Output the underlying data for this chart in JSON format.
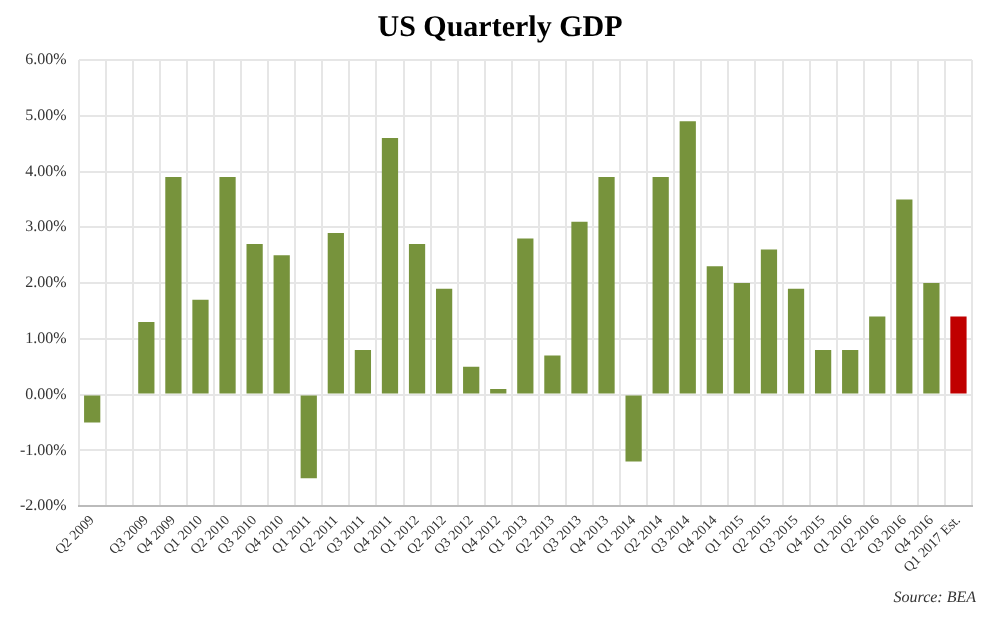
{
  "chart_data": {
    "type": "bar",
    "title": "US Quarterly GDP",
    "categories": [
      "Q2 2009",
      null,
      "Q3 2009",
      "Q4 2009",
      "Q1 2010",
      "Q2 2010",
      "Q3 2010",
      "Q4 2010",
      "Q1 2011",
      "Q2 2011",
      "Q3 2011",
      "Q4 2011",
      "Q1 2012",
      "Q2 2012",
      "Q3 2012",
      "Q4 2012",
      "Q1 2013",
      "Q2 2013",
      "Q3 2013",
      "Q4 2013",
      "Q1 2014",
      "Q2 2014",
      "Q3 2014",
      "Q4 2014",
      "Q1 2015",
      "Q2 2015",
      "Q3 2015",
      "Q4 2015",
      "Q1 2016",
      "Q2 2016",
      "Q3 2016",
      "Q4 2016",
      "Q1 2017 Est."
    ],
    "values": [
      -0.5,
      null,
      1.3,
      3.9,
      1.7,
      3.9,
      2.7,
      2.5,
      -1.5,
      2.9,
      0.8,
      4.6,
      2.7,
      1.9,
      0.5,
      0.1,
      2.8,
      0.7,
      3.1,
      3.9,
      -1.2,
      3.9,
      4.9,
      2.3,
      2.0,
      2.6,
      1.9,
      0.8,
      0.8,
      1.4,
      3.5,
      2.0,
      1.4
    ],
    "colors": [
      "#77933c",
      "#77933c",
      "#77933c",
      "#77933c",
      "#77933c",
      "#77933c",
      "#77933c",
      "#77933c",
      "#77933c",
      "#77933c",
      "#77933c",
      "#77933c",
      "#77933c",
      "#77933c",
      "#77933c",
      "#77933c",
      "#77933c",
      "#77933c",
      "#77933c",
      "#77933c",
      "#77933c",
      "#77933c",
      "#77933c",
      "#77933c",
      "#77933c",
      "#77933c",
      "#77933c",
      "#77933c",
      "#77933c",
      "#77933c",
      "#77933c",
      "#77933c",
      "#c00000"
    ],
    "ylim": [
      -2,
      6
    ],
    "yticks": [
      {
        "value": -2,
        "label": "-2.00%"
      },
      {
        "value": -1,
        "label": "-1.00%"
      },
      {
        "value": 0,
        "label": "0.00%"
      },
      {
        "value": 1,
        "label": "1.00%"
      },
      {
        "value": 2,
        "label": "2.00%"
      },
      {
        "value": 3,
        "label": "3.00%"
      },
      {
        "value": 4,
        "label": "4.00%"
      },
      {
        "value": 5,
        "label": "5.00%"
      },
      {
        "value": 6,
        "label": "6.00%"
      }
    ],
    "grid": true,
    "annotations": [
      "Source: BEA"
    ]
  }
}
